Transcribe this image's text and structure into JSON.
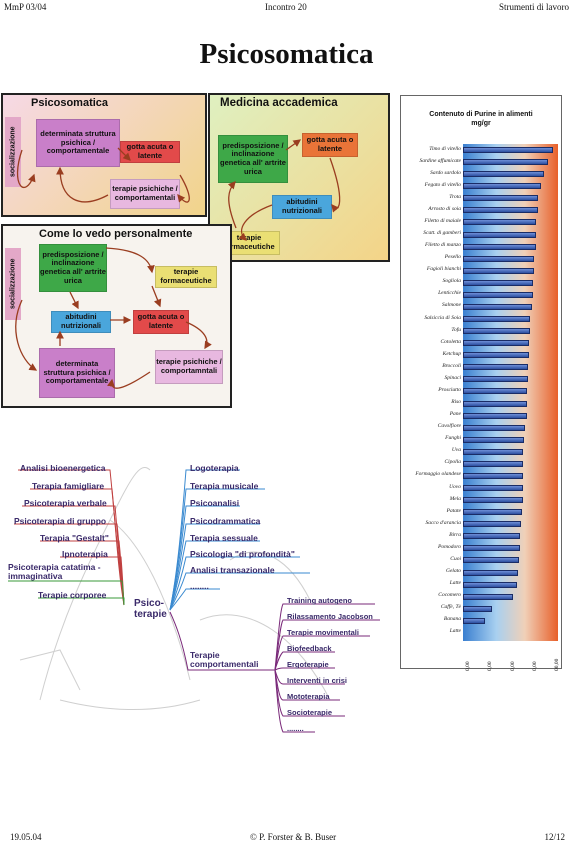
{
  "header": {
    "left": "MmP 03/04",
    "center": "Incontro 20",
    "right": "Strumenti di lavoro"
  },
  "footer": {
    "left": "19.05.04",
    "center": "© P. Forster & B. Buser",
    "right": "12/12"
  },
  "title": "Psicosomatica",
  "panels": {
    "psicosomatica": {
      "title": "Psicosomatica",
      "side": "socializzazione",
      "box1": "determinata struttura psichica / comportamentale",
      "box2": "gotta acuta o latente",
      "box3": "terapie psichiche / comportamentali"
    },
    "medicina": {
      "title": "Medicina accademica",
      "box1": "predisposizione / inclinazione genetica all' artrite urica",
      "box2": "gotta acuta o latente",
      "box3": "abitudini nutrizionali",
      "box4": "terapie formaceutiche"
    },
    "personale": {
      "title": "Come lo vedo personalmente",
      "side": "socializzazione",
      "box1": "predisposizione / inclinazione genetica all' artrite urica",
      "box2": "terapie formaceutiche",
      "box3": "abitudini nutrizionali",
      "box4": "gotta acuta o latente",
      "box5": "determinata struttura psichica / comportamentale",
      "box6": "terapie psichiche / comportamntali"
    }
  },
  "mindmap": {
    "center": "Psico-\nterapie",
    "left": [
      "Analisi bioenergetica",
      "Terapia famigliare",
      "Psicoterapia verbale",
      "Psicoterapia di gruppo",
      "Terapia \"Gestalt\"",
      "Ipnoterapia",
      "Psicoterapia catatima - immaginativa",
      "Terapie corporee"
    ],
    "right": [
      "Logoterapia",
      "Terapia musicale",
      "Psicoanalisi",
      "Psicodrammatica",
      "Terapia sessuale",
      "Psicologia \"di profondità\"",
      "Analisi transazionale",
      "........"
    ],
    "comportamentali": {
      "label": "Terapie comportamentali",
      "items": [
        "Training autogeno",
        "Rilassamento Jacobson",
        "Terapie movimentali",
        "Biofeedback",
        "Ergoterapie",
        "Interventi in crisi",
        "Mototerapia",
        "Socioterapie",
        "........"
      ]
    }
  },
  "chart_data": {
    "type": "bar",
    "orientation": "horizontal",
    "title": "Contenuto di Purine in alimenti",
    "subtitle": "mg/gr",
    "categories": [
      "Timo di vitello",
      "Sardine affumicate",
      "Sardo sardolo",
      "Fegato di vitello",
      "Trota",
      "Arrosto di soia",
      "Filetto di maiale",
      "Scatt. di gamberi",
      "Filetto di manzo",
      "Pesello",
      "Fagioli bianchi",
      "Sogliola",
      "Lenticchie",
      "Salmone",
      "Salsiccia di Soia",
      "Tofu",
      "Cotoletta",
      "Ketchup",
      "Broccoli",
      "Spinaci",
      "Prosciutto",
      "Riso",
      "Pane",
      "Cavolfiore",
      "Funghi",
      "Uva",
      "Cipolla",
      "Formaggio olandese",
      "Uovo",
      "Mela",
      "Patate",
      "Sacco d'arancia",
      "Birra",
      "Pomodoro",
      "Cuoi",
      "Gelato",
      "Latte",
      "Cocomero",
      "Caffè, Tè",
      "Banana",
      "Latte"
    ],
    "values": [
      5.2,
      4.9,
      4.7,
      4.5,
      4.35,
      4.35,
      4.2,
      4.2,
      4.2,
      4.1,
      4.1,
      4.05,
      4.05,
      4.0,
      3.9,
      3.9,
      3.8,
      3.8,
      3.75,
      3.75,
      3.7,
      3.7,
      3.7,
      3.6,
      3.55,
      3.5,
      3.5,
      3.45,
      3.45,
      3.45,
      3.4,
      3.35,
      3.3,
      3.3,
      3.25,
      3.2,
      3.15,
      2.9,
      1.7,
      1.3,
      0
    ],
    "xticks": [
      "0,00",
      "0,00",
      "0,00",
      "0,00",
      "00,00"
    ],
    "xlim": [
      0,
      5.5
    ]
  }
}
